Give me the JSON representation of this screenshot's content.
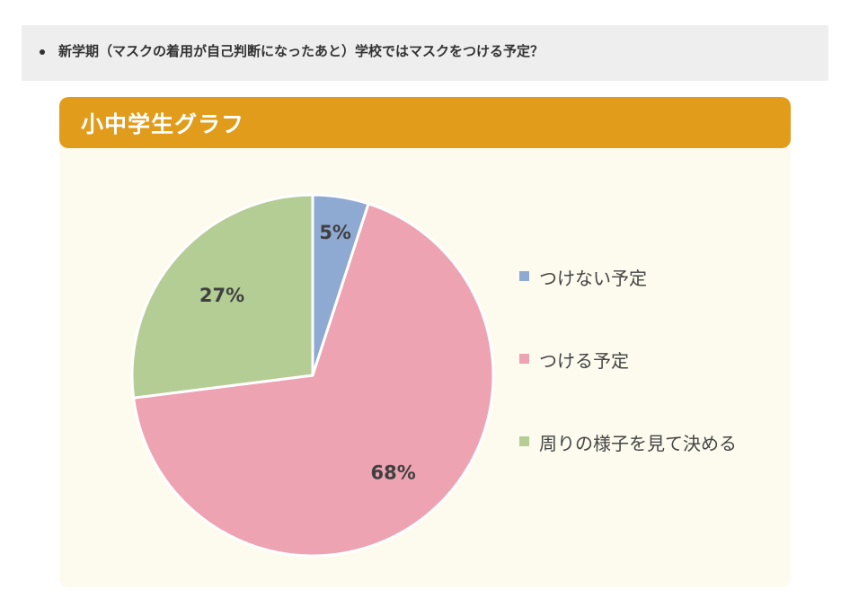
{
  "question": {
    "text": "新学期（マスクの着用が自己判断になったあと）学校ではマスクをつける予定？"
  },
  "chart_data": {
    "type": "pie",
    "title": "小中学生グラフ",
    "categories": [
      "つけない予定",
      "つける予定",
      "周りの様子を見て決める"
    ],
    "values": [
      5,
      68,
      27
    ],
    "value_labels": [
      "5%",
      "68%",
      "27%"
    ],
    "colors": [
      "#8eaad3",
      "#eea3b3",
      "#b3cd95"
    ],
    "start_angle": "12 o'clock, clockwise",
    "legend": "right"
  }
}
